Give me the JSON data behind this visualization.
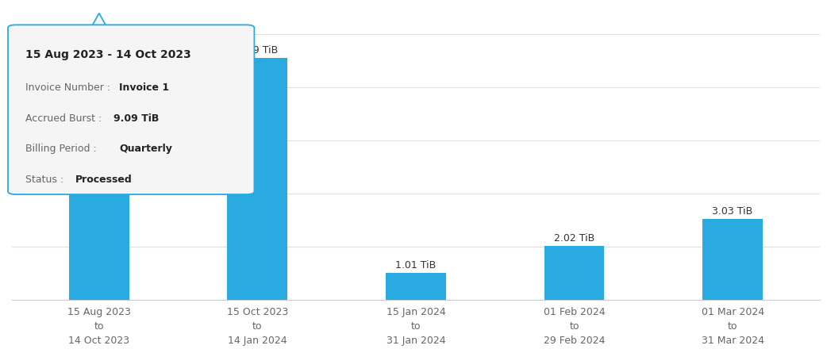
{
  "categories": [
    "15 Aug 2023\nto\n14 Oct 2023",
    "15 Oct 2023\nto\n14 Jan 2024",
    "15 Jan 2024\nto\n31 Jan 2024",
    "01 Feb 2024\nto\n29 Feb 2024",
    "01 Mar 2024\nto\n31 Mar 2024"
  ],
  "values": [
    9.09,
    9.09,
    1.01,
    2.02,
    3.03
  ],
  "labels": [
    "9.09 TiB",
    "9.09 TiB",
    "1.01 TiB",
    "2.02 TiB",
    "3.03 TiB"
  ],
  "bar_color": "#29ABE2",
  "background_color": "#ffffff",
  "ylim": [
    0,
    11
  ],
  "grid_color": "#e0e0e0",
  "label_fontsize": 9,
  "tick_fontsize": 9,
  "tooltip": {
    "title": "15 Aug 2023 - 14 Oct 2023",
    "lines": [
      [
        "Invoice Number : ",
        "Invoice 1"
      ],
      [
        "Accrued Burst : ",
        "9.09 TiB"
      ],
      [
        "Billing Period : ",
        "Quarterly"
      ],
      [
        "Status : ",
        "Processed"
      ]
    ],
    "border_color": "#29ABE2",
    "bg_color": "#f5f5f5",
    "title_fontsize": 10,
    "line_fontsize": 9
  }
}
